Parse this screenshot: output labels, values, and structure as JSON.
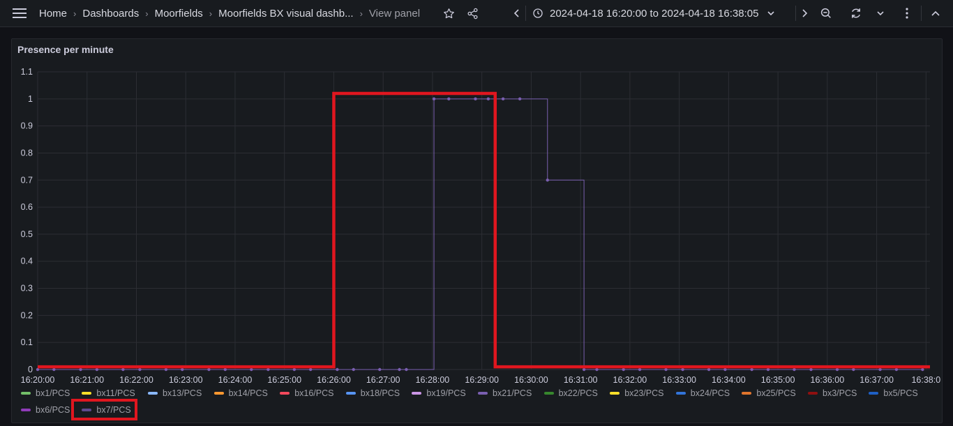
{
  "breadcrumb": [
    {
      "label": "Home"
    },
    {
      "label": "Dashboards"
    },
    {
      "label": "Moorfields"
    },
    {
      "label": "Moorfields BX visual dashb..."
    }
  ],
  "breadcrumb_current": "View panel",
  "time_range": "2024-04-18 16:20:00 to 2024-04-18 16:38:05",
  "panel": {
    "title": "Presence per minute"
  },
  "chart_data": {
    "type": "line",
    "title": "Presence per minute",
    "y_ticks": [
      "1.1",
      "1",
      "0.9",
      "0.8",
      "0.7",
      "0.6",
      "0.5",
      "0.4",
      "0.3",
      "0.2",
      "0.1",
      "0"
    ],
    "ylim": [
      0,
      1.1
    ],
    "x_ticks": [
      "16:20:00",
      "16:21:00",
      "16:22:00",
      "16:23:00",
      "16:24:00",
      "16:25:00",
      "16:26:00",
      "16:27:00",
      "16:28:00",
      "16:29:00",
      "16:30:00",
      "16:31:00",
      "16:32:00",
      "16:33:00",
      "16:34:00",
      "16:35:00",
      "16:36:00",
      "16:37:00",
      "16:38:0"
    ],
    "xlim_minutes": [
      0,
      18.08
    ],
    "grid": true,
    "legend_placement": "bottom",
    "series": [
      {
        "name": "bx21/PCS",
        "color": "#7a5fb0",
        "x_minutes": [
          0.0,
          0.33,
          0.87,
          1.2,
          1.73,
          2.07,
          2.6,
          2.93,
          3.47,
          3.8,
          4.33,
          4.67,
          5.2,
          5.53,
          6.07,
          6.4,
          6.93,
          7.33,
          7.47,
          8.03,
          8.33,
          8.87,
          9.13,
          9.43,
          9.77,
          10.33,
          11.07,
          11.33,
          11.87,
          12.2,
          12.73,
          13.07,
          13.6,
          13.93,
          14.47,
          14.8,
          15.33,
          15.67,
          16.2,
          16.53,
          17.07,
          17.4,
          17.93
        ],
        "values": [
          0,
          0,
          0,
          0,
          0,
          0,
          0,
          0,
          0,
          0,
          0,
          0,
          0,
          0,
          0,
          0,
          0,
          0,
          0,
          1,
          1,
          1,
          1,
          1,
          1,
          0.7,
          0,
          0,
          0,
          0,
          0,
          0,
          0,
          0,
          0,
          0,
          0,
          0,
          0,
          0,
          0,
          0,
          0
        ]
      }
    ],
    "highlight_series": {
      "name": "annotation",
      "color": "#e0161f",
      "x_minutes": [
        0,
        6.0,
        6.0,
        9.27,
        9.27,
        18.08
      ],
      "values": [
        0.01,
        0.01,
        1.02,
        1.02,
        0.01,
        0.01
      ]
    }
  },
  "legend": [
    {
      "label": "bx1/PCS",
      "color": "#73bf69"
    },
    {
      "label": "bx11/PCS",
      "color": "#fade2a"
    },
    {
      "label": "bx13/PCS",
      "color": "#8ab8ff"
    },
    {
      "label": "bx14/PCS",
      "color": "#ff9830"
    },
    {
      "label": "bx16/PCS",
      "color": "#f2495c"
    },
    {
      "label": "bx18/PCS",
      "color": "#5794f2"
    },
    {
      "label": "bx19/PCS",
      "color": "#ca95e5"
    },
    {
      "label": "bx21/PCS",
      "color": "#7a5fb0"
    },
    {
      "label": "bx22/PCS",
      "color": "#37872d"
    },
    {
      "label": "bx23/PCS",
      "color": "#fade2a"
    },
    {
      "label": "bx24/PCS",
      "color": "#3274d9"
    },
    {
      "label": "bx25/PCS",
      "color": "#e0752d"
    },
    {
      "label": "bx3/PCS",
      "color": "#8f1010"
    },
    {
      "label": "bx5/PCS",
      "color": "#1f60c4"
    },
    {
      "label": "bx6/PCS",
      "color": "#8f3bb8"
    },
    {
      "label": "bx7/PCS",
      "color": "#5e4a8e"
    }
  ]
}
